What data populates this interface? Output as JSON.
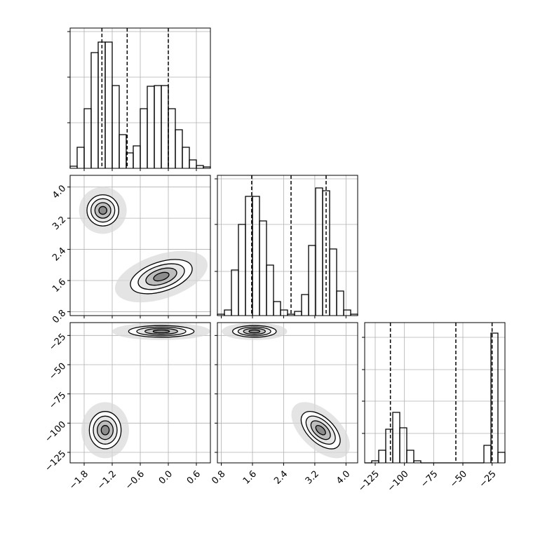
{
  "chart_data": {
    "type": "corner",
    "grid": true,
    "color": "#000000",
    "levels": [
      0.5,
      1,
      1.5,
      2
    ],
    "parameters": [
      {
        "xlim": [
          -2.1,
          0.9
        ],
        "xticks": [
          {
            "value": -1.8,
            "label": "−1.8"
          },
          {
            "value": -1.2,
            "label": "−1.2"
          },
          {
            "value": -0.6,
            "label": "−0.6"
          },
          {
            "value": 0,
            "label": "0.0"
          },
          0.6
        ],
        "bins": [
          -2.1,
          -1.95,
          -1.8,
          -1.65,
          -1.5,
          -1.35,
          -1.2,
          -1.05,
          -0.9,
          -0.75,
          -0.6,
          -0.45,
          -0.3,
          -0.15,
          0,
          0.15,
          0.3,
          0.45,
          0.6,
          0.75,
          0.9
        ],
        "counts": [
          3,
          30,
          85,
          165,
          180,
          180,
          118,
          48,
          22,
          32,
          85,
          117,
          118,
          118,
          85,
          55,
          30,
          12,
          4,
          2
        ],
        "ylim": [
          0,
          200
        ],
        "yticks": [
          65,
          130,
          195
        ],
        "quantiles": [
          -1.42,
          -0.88,
          0.0
        ]
      },
      {
        "xlim": [
          0.7,
          4.3
        ],
        "xticks": [
          0.8,
          1.6,
          2.4,
          3.2,
          {
            "value": 4,
            "label": "4.0"
          }
        ],
        "bins": [
          0.7,
          0.88,
          1.06,
          1.24,
          1.42,
          1.6,
          1.78,
          1.96,
          2.14,
          2.32,
          2.5,
          2.68,
          2.86,
          3.04,
          3.22,
          3.4,
          3.58,
          3.76,
          3.94,
          4.12,
          4.3
        ],
        "counts": [
          2,
          8,
          65,
          130,
          170,
          170,
          135,
          72,
          20,
          8,
          2,
          6,
          30,
          100,
          182,
          178,
          95,
          35,
          8,
          2
        ],
        "ylim": [
          0,
          200
        ],
        "yticks": [
          63,
          130,
          195
        ],
        "quantiles": [
          1.58,
          2.59,
          3.49
        ]
      },
      {
        "xlim": [
          -134,
          -14
        ],
        "xticks": [
          {
            "value": -125,
            "label": "−125"
          },
          {
            "value": -100,
            "label": "−100"
          },
          {
            "value": -75,
            "label": "−75"
          },
          {
            "value": -50,
            "label": "−50"
          },
          {
            "value": -25,
            "label": "−25"
          }
        ],
        "bins": [
          -134,
          -128,
          -122,
          -116,
          -110,
          -104,
          -98,
          -92,
          -86,
          -80,
          -74,
          -68,
          -62,
          -56,
          -50,
          -44,
          -38,
          -32,
          -26,
          -20,
          -14
        ],
        "counts": [
          0,
          3,
          18,
          48,
          72,
          50,
          18,
          3,
          0,
          0,
          0,
          0,
          0,
          0,
          0,
          0,
          0,
          25,
          185,
          15
        ],
        "ylim": [
          0,
          200
        ],
        "yticks": [
          42,
          88,
          133,
          179
        ],
        "quantiles": [
          -112,
          -56,
          -25
        ]
      }
    ],
    "pairs": [
      {
        "x": 0,
        "y": 1,
        "modes": [
          {
            "center": [
              -1.4,
              3.4
            ],
            "sigma": [
              0.17,
              0.2
            ],
            "rho": 0
          },
          {
            "center": [
              -0.15,
              1.7
            ],
            "sigma": [
              0.33,
              0.22
            ],
            "rho": 0.45
          }
        ]
      },
      {
        "x": 0,
        "y": 2,
        "modes": [
          {
            "center": [
              -1.35,
              -106
            ],
            "sigma": [
              0.17,
              8
            ],
            "rho": 0
          },
          {
            "center": [
              -0.15,
              -21.5
            ],
            "sigma": [
              0.35,
              2.5
            ],
            "rho": 0
          }
        ]
      },
      {
        "x": 1,
        "y": 2,
        "modes": [
          {
            "center": [
              1.65,
              -21.5
            ],
            "sigma": [
              0.28,
              2.5
            ],
            "rho": 0
          },
          {
            "center": [
              3.35,
              -106
            ],
            "sigma": [
              0.25,
              8
            ],
            "rho": -0.55
          }
        ]
      }
    ]
  }
}
